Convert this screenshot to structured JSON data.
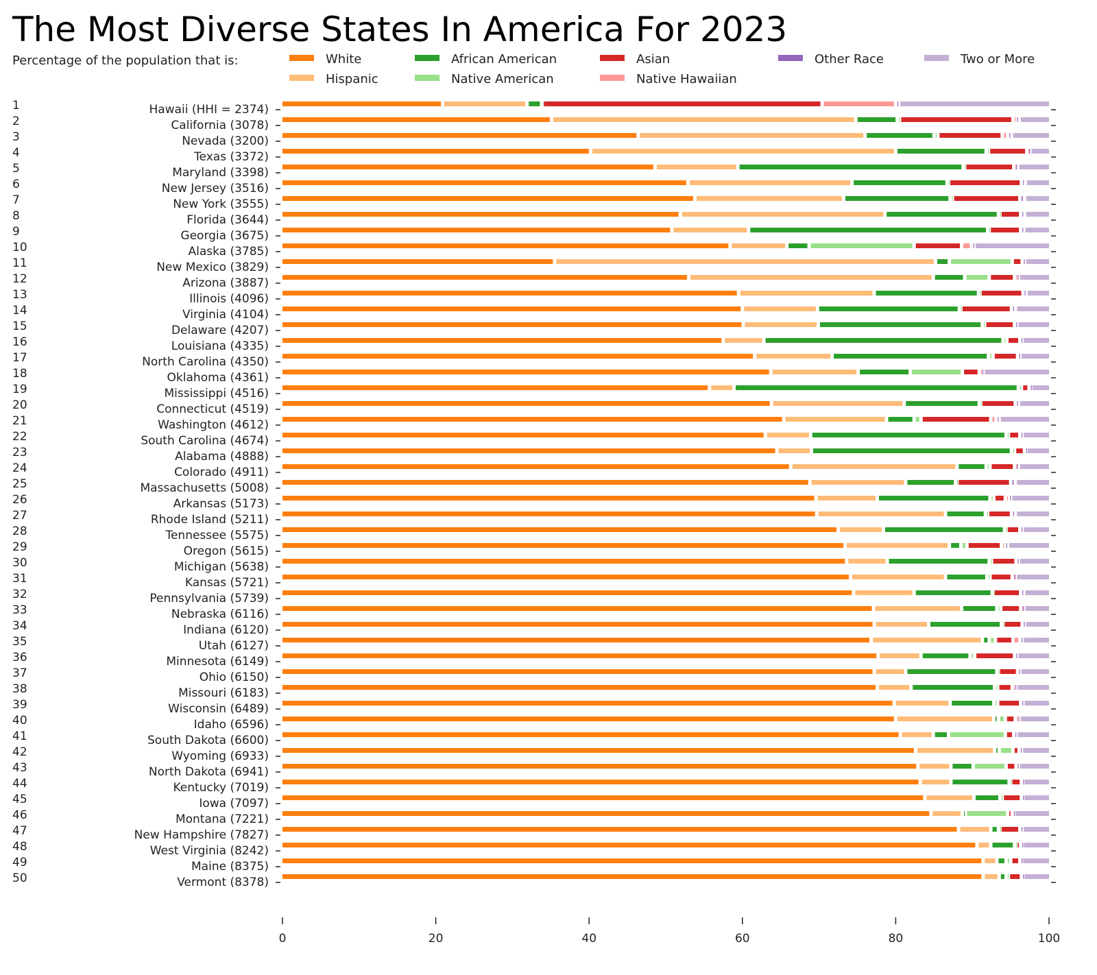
{
  "chart_data": {
    "type": "bar",
    "orientation": "horizontal-stacked",
    "title": "The Most Diverse States In America For 2023",
    "subtitle": "Percentage of the population that is:",
    "xlim": [
      0,
      100
    ],
    "xticks": [
      "0",
      "20",
      "40",
      "60",
      "80",
      "100"
    ],
    "grid": false,
    "legend_position": "top",
    "series": [
      {
        "name": "White",
        "color": "#ff7f0e"
      },
      {
        "name": "Hispanic",
        "color": "#ffbb78"
      },
      {
        "name": "African American",
        "color": "#2ca02c"
      },
      {
        "name": "Native American",
        "color": "#98df8a"
      },
      {
        "name": "Asian",
        "color": "#d62728"
      },
      {
        "name": "Native Hawaiian",
        "color": "#ff9896"
      },
      {
        "name": "Other Race",
        "color": "#9467bd"
      },
      {
        "name": "Two or More",
        "color": "#c5b0d5"
      }
    ],
    "rows": [
      {
        "rank": "1",
        "label": "Hawaii (HHI = 2374)",
        "values": [
          20.9,
          11.0,
          1.9,
          0.1,
          36.5,
          9.6,
          0.4,
          19.6
        ]
      },
      {
        "rank": "2",
        "label": "California (3078)",
        "values": [
          35.1,
          39.7,
          5.4,
          0.3,
          14.8,
          0.3,
          0.5,
          3.9
        ]
      },
      {
        "rank": "3",
        "label": "Nevada (3200)",
        "values": [
          46.4,
          29.6,
          9.0,
          0.5,
          8.4,
          0.7,
          0.5,
          4.9
        ]
      },
      {
        "rank": "4",
        "label": "Texas (3372)",
        "values": [
          40.2,
          39.8,
          11.8,
          0.3,
          5.0,
          0.1,
          0.3,
          2.5
        ]
      },
      {
        "rank": "5",
        "label": "Maryland (3398)",
        "values": [
          48.6,
          10.8,
          29.4,
          0.2,
          6.4,
          0.1,
          0.4,
          4.1
        ]
      },
      {
        "rank": "6",
        "label": "New Jersey (3516)",
        "values": [
          52.9,
          21.4,
          12.4,
          0.2,
          9.5,
          0.0,
          0.5,
          3.1
        ]
      },
      {
        "rank": "7",
        "label": "New York (3555)",
        "values": [
          53.8,
          19.4,
          13.9,
          0.3,
          8.8,
          0.0,
          0.6,
          3.2
        ]
      },
      {
        "rank": "8",
        "label": "Florida (3644)",
        "values": [
          51.9,
          26.7,
          14.8,
          0.2,
          2.7,
          0.0,
          0.5,
          3.2
        ]
      },
      {
        "rank": "9",
        "label": "Georgia (3675)",
        "values": [
          50.8,
          10.0,
          31.2,
          0.2,
          4.1,
          0.0,
          0.4,
          3.3
        ]
      },
      {
        "rank": "10",
        "label": "Alaska (3785)",
        "values": [
          58.4,
          7.4,
          2.9,
          13.7,
          6.2,
          1.3,
          0.3,
          9.8
        ]
      },
      {
        "rank": "11",
        "label": "New Mexico (3829)",
        "values": [
          35.5,
          49.7,
          1.8,
          8.2,
          1.3,
          0.0,
          0.3,
          3.2
        ]
      },
      {
        "rank": "12",
        "label": "Arizona (3887)",
        "values": [
          53.0,
          31.9,
          4.1,
          3.2,
          3.3,
          0.2,
          0.3,
          4.0
        ]
      },
      {
        "rank": "13",
        "label": "Illinois (4096)",
        "values": [
          59.5,
          17.7,
          13.6,
          0.2,
          5.6,
          0.0,
          0.4,
          3.0
        ]
      },
      {
        "rank": "14",
        "label": "Virginia (4104)",
        "values": [
          60.0,
          9.8,
          18.5,
          0.2,
          6.6,
          0.0,
          0.5,
          4.4
        ]
      },
      {
        "rank": "15",
        "label": "Delaware (4207)",
        "values": [
          60.1,
          9.8,
          21.4,
          0.3,
          3.9,
          0.0,
          0.3,
          4.2
        ]
      },
      {
        "rank": "16",
        "label": "Louisiana (4335)",
        "values": [
          57.5,
          5.3,
          31.2,
          0.5,
          1.7,
          0.0,
          0.3,
          3.5
        ]
      },
      {
        "rank": "17",
        "label": "North Carolina (4350)",
        "values": [
          61.6,
          10.1,
          20.4,
          0.6,
          3.2,
          0.0,
          0.3,
          3.8
        ]
      },
      {
        "rank": "18",
        "label": "Oklahoma (4361)",
        "values": [
          63.7,
          11.4,
          6.8,
          6.8,
          2.2,
          0.2,
          0.3,
          8.6
        ]
      },
      {
        "rank": "19",
        "label": "Mississippi (4516)",
        "values": [
          55.7,
          3.2,
          37.1,
          0.4,
          1.0,
          0.0,
          0.2,
          2.4
        ]
      },
      {
        "rank": "20",
        "label": "Connecticut (4519)",
        "values": [
          63.8,
          17.3,
          9.8,
          0.2,
          4.5,
          0.0,
          0.4,
          4.0
        ]
      },
      {
        "rank": "21",
        "label": "Washington (4612)",
        "values": [
          65.4,
          13.4,
          3.6,
          0.9,
          9.1,
          0.7,
          0.4,
          6.5
        ]
      },
      {
        "rank": "22",
        "label": "South Carolina (4674)",
        "values": [
          63.0,
          5.9,
          25.5,
          0.3,
          1.5,
          0.0,
          0.3,
          3.5
        ]
      },
      {
        "rank": "23",
        "label": "Alabama (4888)",
        "values": [
          64.5,
          4.5,
          26.1,
          0.4,
          1.3,
          0.0,
          0.2,
          3.0
        ]
      },
      {
        "rank": "24",
        "label": "Colorado (4911)",
        "values": [
          66.3,
          21.7,
          3.8,
          0.5,
          3.2,
          0.1,
          0.4,
          4.0
        ]
      },
      {
        "rank": "25",
        "label": "Massachusetts (5008)",
        "values": [
          68.8,
          12.5,
          6.5,
          0.2,
          7.0,
          0.0,
          0.6,
          4.4
        ]
      },
      {
        "rank": "26",
        "label": "Arkansas (5173)",
        "values": [
          69.6,
          8.0,
          14.7,
          0.5,
          1.5,
          0.4,
          0.3,
          5.0
        ]
      },
      {
        "rank": "27",
        "label": "Rhode Island (5211)",
        "values": [
          69.7,
          16.8,
          5.2,
          0.3,
          3.1,
          0.0,
          0.5,
          4.4
        ]
      },
      {
        "rank": "28",
        "label": "Tennessee (5575)",
        "values": [
          72.5,
          5.9,
          15.8,
          0.2,
          1.8,
          0.0,
          0.3,
          3.5
        ]
      },
      {
        "rank": "29",
        "label": "Oregon (5615)",
        "values": [
          73.4,
          13.6,
          1.5,
          0.8,
          4.5,
          0.4,
          0.4,
          5.4
        ]
      },
      {
        "rank": "30",
        "label": "Michigan (5638)",
        "values": [
          73.6,
          5.3,
          13.3,
          0.3,
          3.2,
          0.0,
          0.3,
          4.0
        ]
      },
      {
        "rank": "31",
        "label": "Kansas (5721)",
        "values": [
          74.1,
          12.4,
          5.4,
          0.4,
          2.9,
          0.1,
          0.3,
          4.4
        ]
      },
      {
        "rank": "32",
        "label": "Pennsylvania (5739)",
        "values": [
          74.5,
          7.9,
          10.2,
          0.1,
          3.6,
          0.0,
          0.4,
          3.3
        ]
      },
      {
        "rank": "33",
        "label": "Nebraska (6116)",
        "values": [
          77.1,
          11.5,
          4.6,
          0.5,
          2.6,
          0.1,
          0.3,
          3.3
        ]
      },
      {
        "rank": "34",
        "label": "Indiana (6120)",
        "values": [
          77.2,
          7.1,
          9.5,
          0.2,
          2.5,
          0.0,
          0.3,
          3.2
        ]
      },
      {
        "rank": "35",
        "label": "Utah (6127)",
        "values": [
          76.8,
          14.5,
          0.9,
          0.8,
          2.3,
          0.9,
          0.3,
          3.5
        ]
      },
      {
        "rank": "36",
        "label": "Minnesota (6149)",
        "values": [
          77.7,
          5.6,
          6.4,
          0.6,
          5.2,
          0.0,
          0.3,
          4.2
        ]
      },
      {
        "rank": "37",
        "label": "Ohio (6150)",
        "values": [
          77.2,
          4.1,
          11.9,
          0.2,
          2.5,
          0.0,
          0.3,
          3.8
        ]
      },
      {
        "rank": "38",
        "label": "Missouri (6183)",
        "values": [
          77.6,
          4.4,
          10.9,
          0.4,
          1.9,
          0.2,
          0.3,
          4.3
        ]
      },
      {
        "rank": "39",
        "label": "Wisconsin (6489)",
        "values": [
          79.8,
          7.3,
          5.7,
          0.5,
          3.0,
          0.0,
          0.3,
          3.4
        ]
      },
      {
        "rank": "40",
        "label": "Idaho (6596)",
        "values": [
          80.0,
          12.8,
          0.6,
          0.9,
          1.3,
          0.2,
          0.3,
          3.9
        ]
      },
      {
        "rank": "41",
        "label": "South Dakota (6600)",
        "values": [
          80.6,
          4.3,
          2.0,
          7.4,
          1.1,
          0.0,
          0.3,
          4.3
        ]
      },
      {
        "rank": "42",
        "label": "Wyoming (6933)",
        "values": [
          82.6,
          10.3,
          0.6,
          1.8,
          0.8,
          0.0,
          0.3,
          3.6
        ]
      },
      {
        "rank": "43",
        "label": "North Dakota (6941)",
        "values": [
          82.9,
          4.3,
          2.9,
          4.3,
          1.3,
          0.0,
          0.3,
          4.0
        ]
      },
      {
        "rank": "44",
        "label": "Kentucky (7019)",
        "values": [
          83.2,
          4.0,
          7.6,
          0.2,
          1.4,
          0.0,
          0.2,
          3.4
        ]
      },
      {
        "rank": "45",
        "label": "Iowa (7097)",
        "values": [
          83.8,
          6.4,
          3.4,
          0.3,
          2.5,
          0.0,
          0.2,
          3.4
        ]
      },
      {
        "rank": "46",
        "label": "Montana (7221)",
        "values": [
          84.6,
          4.1,
          0.4,
          5.5,
          0.6,
          0.0,
          0.2,
          4.6
        ]
      },
      {
        "rank": "47",
        "label": "New Hampshire (7827)",
        "values": [
          88.2,
          4.2,
          1.0,
          0.2,
          2.6,
          0.0,
          0.3,
          3.5
        ]
      },
      {
        "rank": "48",
        "label": "West Virginia (8242)",
        "values": [
          90.6,
          1.8,
          3.1,
          0.2,
          0.6,
          0.0,
          0.2,
          3.5
        ]
      },
      {
        "rank": "49",
        "label": "Maine (8375)",
        "values": [
          91.4,
          1.8,
          1.2,
          0.6,
          1.2,
          0.0,
          0.2,
          3.6
        ]
      },
      {
        "rank": "50",
        "label": "Vermont (8378)",
        "values": [
          91.4,
          2.1,
          0.9,
          0.3,
          1.7,
          0.0,
          0.2,
          3.4
        ]
      }
    ]
  }
}
